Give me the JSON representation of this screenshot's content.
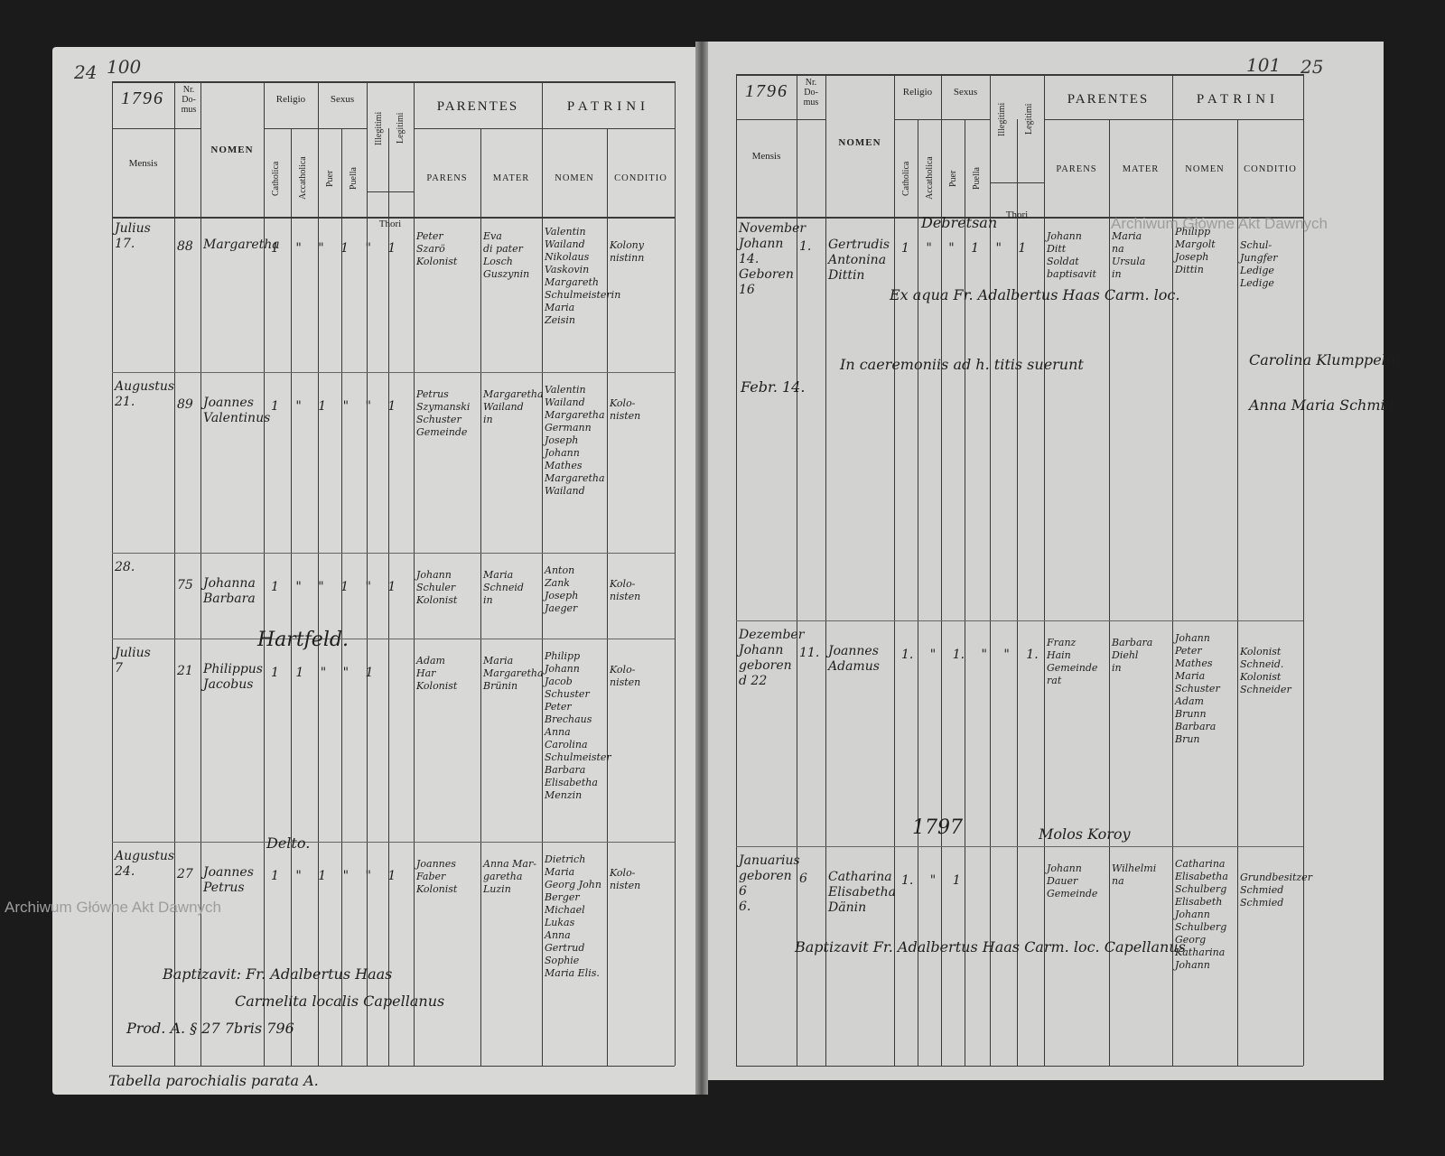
{
  "watermarks": [
    "Archiwum Główne Akt Dawnych",
    "Archiwum Główne Akt Dawnych"
  ],
  "headers": {
    "year": "1796",
    "nr_domus": "Nr. Do-mus",
    "mensis": "Mensis",
    "nomen": "NOMEN",
    "religio": "Religio",
    "catholica": "Catholica",
    "acatholica": "Accatholica",
    "sexus": "Sexus",
    "puer": "Puer",
    "puella": "Puella",
    "illegitimi": "Illegitimi",
    "legitimi": "Legitimi",
    "thori": "Thori",
    "parentes": "PARENTES",
    "parens": "PARENS",
    "mater": "MATER",
    "patrini": "PATRINI",
    "patrini_nomen": "NOMEN",
    "conditio": "CONDITIO"
  },
  "left": {
    "page_numbers": [
      "24",
      "100"
    ],
    "entries": [
      {
        "mensis": "Julius\n17.",
        "nr": "88",
        "nomen": "Margaretha",
        "marks": "1  \"  \"  1  \"  1",
        "parens": "Peter\nSzarö\nKolonist",
        "mater": "Eva\ndi pater\nLosch\nGuszynin",
        "patrini": "Valentin\nWailand\nNikolaus\nVaskovin\nMargareth\nSchulmeisterin\nMaria\nZeisin",
        "conditio": "Kolony\nnistinn"
      },
      {
        "mensis": "Augustus\n21.",
        "nr": "89",
        "nomen": "Joannes\nValentinus",
        "marks": "1  \"  1  \"  \"  1",
        "parens": "Petrus\nSzymanski\nSchuster\nGemeinde",
        "mater": "Margaretha\nWailand\nin",
        "patrini": "Valentin\nWailand\nMargaretha\nGermann\nJoseph\nJohann\nMathes\nMargaretha\nWailand",
        "conditio": "Kolo-\nnisten"
      },
      {
        "mensis": "28.",
        "nr": "75",
        "nomen": "Johanna\nBarbara",
        "marks": "1  \"  \"  1  \"  1",
        "parens": "Johann\nSchuler\nKolonist",
        "mater": "Maria\nSchneid\nin",
        "patrini": "Anton\nZank\nJoseph\nJaeger",
        "conditio": "Kolo-\nnisten"
      },
      {
        "mensis": "Julius\n7",
        "nr": "21",
        "nomen": "Philippus\nJacobus",
        "marks": "1  1  \"  \"  1",
        "parens": "Adam\nHar\nKolonist",
        "mater": "Maria\nMargaretha\nBrünin",
        "patrini": "Philipp\nJohann\nJacob\nSchuster\nPeter\nBrechaus\nAnna\nCarolina\nSchulmeister\nBarbara\nElisabetha\nMenzin",
        "conditio": "Kolo-\nnisten"
      },
      {
        "mensis": "Augustus\n24.",
        "nr": "27",
        "nomen": "Joannes\nPetrus",
        "marks": "1  \"  1  \"  \"  1",
        "parens": "Joannes\nFaber\nKolonist",
        "mater": "Anna Mar-\ngaretha\nLuzin",
        "patrini": "Dietrich\nMaria\nGeorg John\nBerger\nMichael\nLukas\nAnna\nGertrud\nSophie\nMaria Elis.",
        "conditio": "Kolo-\nnisten"
      }
    ],
    "notes": [
      "Hartfeld.",
      "Delto.",
      "Baptizavit: Fr. Adalbertus Haas",
      "Carmelita localis Capellanus",
      "Prod. A. § 27 7bris 796",
      "Tabella parochialis parata A."
    ]
  },
  "right": {
    "page_numbers": [
      "101",
      "25"
    ],
    "entries": [
      {
        "mensis": "November\nJohann 14.\nGeboren 16",
        "nr": "1.",
        "nomen": "Gertrudis\nAntonina\nDittin",
        "marks": "1  \"  \"  1  \"  1",
        "parens": "Johann\nDitt\nSoldat\nbaptisavit",
        "mater": "Maria\nna\nUrsula\nin",
        "patrini": "Philipp\nMargolt\nJoseph\nDittin",
        "conditio": "Schul-\nJungfer\nLedige\nLedige"
      },
      {
        "mensis": "Dezember\nJohann\ngeboren\nd 22",
        "nr": "11.",
        "nomen": "Joannes\nAdamus",
        "marks": "1.  \"  1.  \"  \"  1.",
        "parens": "Franz\nHain\nGemeinde\nrat",
        "mater": "Barbara\nDiehl\nin",
        "patrini": "Johann\nPeter\nMathes\nMaria\nSchuster\nAdam\nBrunn\nBarbara\nBrun",
        "conditio": "Kolonist\nSchneid.\nKolonist\nSchneider"
      },
      {
        "mensis": "Januarius\ngeboren 6\n6.",
        "nr": "6",
        "nomen": "Catharina\nElisabetha\nDänin",
        "marks": "1.  \"  1",
        "parens": "Johann\nDauer\nGemeinde",
        "mater": "Wilhelmi\nna",
        "patrini": "Catharina\nElisabetha\nSchulberg\nElisabeth\nJohann\nSchulberg\nGeorg\nKatharina\nJohann",
        "conditio": "Grundbesitzer\nSchmied\nSchmied"
      }
    ],
    "notes": [
      "Debretsan",
      "Ex aqua Fr. Adalbertus Haas Carm. loc.",
      "In caeremoniis ad h. titis suerunt",
      "Febr. 14.",
      "Carolina Klumppelin",
      "Anna Maria Schmid",
      "1797",
      "Molos Koroy",
      "Baptizavit Fr. Adalbertus Haas Carm. loc. Capellanus"
    ]
  }
}
